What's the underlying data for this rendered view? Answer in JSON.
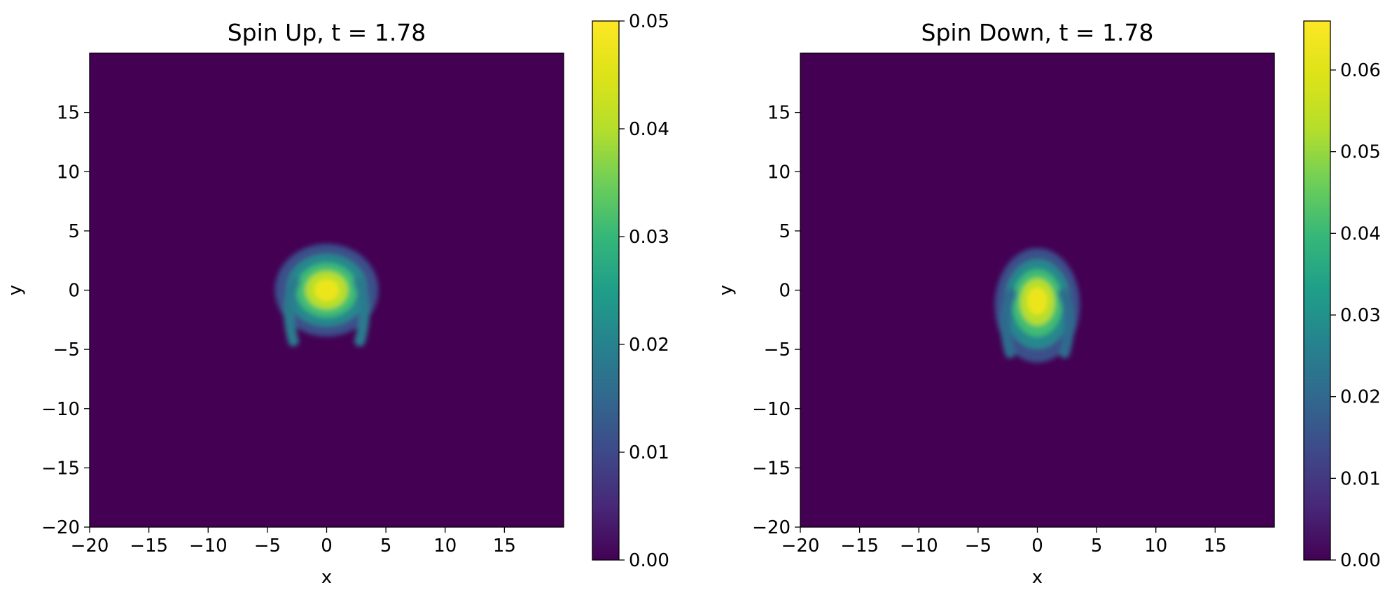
{
  "chart_data": [
    {
      "type": "heatmap",
      "title": "Spin Up, t = 1.78",
      "xlabel": "x",
      "ylabel": "y",
      "xlim": [
        -20,
        20
      ],
      "ylim": [
        -20,
        20
      ],
      "xticks": [
        -20,
        -15,
        -10,
        -5,
        0,
        5,
        10,
        15
      ],
      "yticks": [
        -20,
        -15,
        -10,
        -5,
        0,
        5,
        10,
        15
      ],
      "colormap": "viridis",
      "grid": false,
      "colorbar": {
        "min": 0.0,
        "max": 0.05,
        "ticks": [
          0.0,
          0.01,
          0.02,
          0.03,
          0.04,
          0.05
        ],
        "tick_labels": [
          "0.00",
          "0.01",
          "0.02",
          "0.03",
          "0.04",
          "0.05"
        ]
      },
      "features": [
        {
          "kind": "central-blob",
          "x": 0,
          "y": 0,
          "peak": 0.05
        },
        {
          "kind": "fringe-arc",
          "x": -3,
          "y": -1.5,
          "peak": 0.02
        },
        {
          "kind": "fringe-arc",
          "x": 3,
          "y": -1.5,
          "peak": 0.02
        }
      ]
    },
    {
      "type": "heatmap",
      "title": "Spin Down, t = 1.78",
      "xlabel": "x",
      "ylabel": "y",
      "xlim": [
        -20,
        20
      ],
      "ylim": [
        -20,
        20
      ],
      "xticks": [
        -20,
        -15,
        -10,
        -5,
        0,
        5,
        10,
        15
      ],
      "yticks": [
        -20,
        -15,
        -10,
        -5,
        0,
        5,
        10,
        15
      ],
      "colormap": "viridis",
      "grid": false,
      "colorbar": {
        "min": 0.0,
        "max": 0.066,
        "ticks": [
          0.0,
          0.01,
          0.02,
          0.03,
          0.04,
          0.05,
          0.06
        ],
        "tick_labels": [
          "0.00",
          "0.01",
          "0.02",
          "0.03",
          "0.04",
          "0.05",
          "0.06"
        ]
      },
      "features": [
        {
          "kind": "central-blob",
          "x": 0,
          "y": -0.8,
          "peak": 0.066
        },
        {
          "kind": "fringe-arc",
          "x": -2.5,
          "y": -2.5,
          "peak": 0.02
        },
        {
          "kind": "fringe-arc",
          "x": 2.5,
          "y": -2.5,
          "peak": 0.02
        }
      ]
    }
  ]
}
